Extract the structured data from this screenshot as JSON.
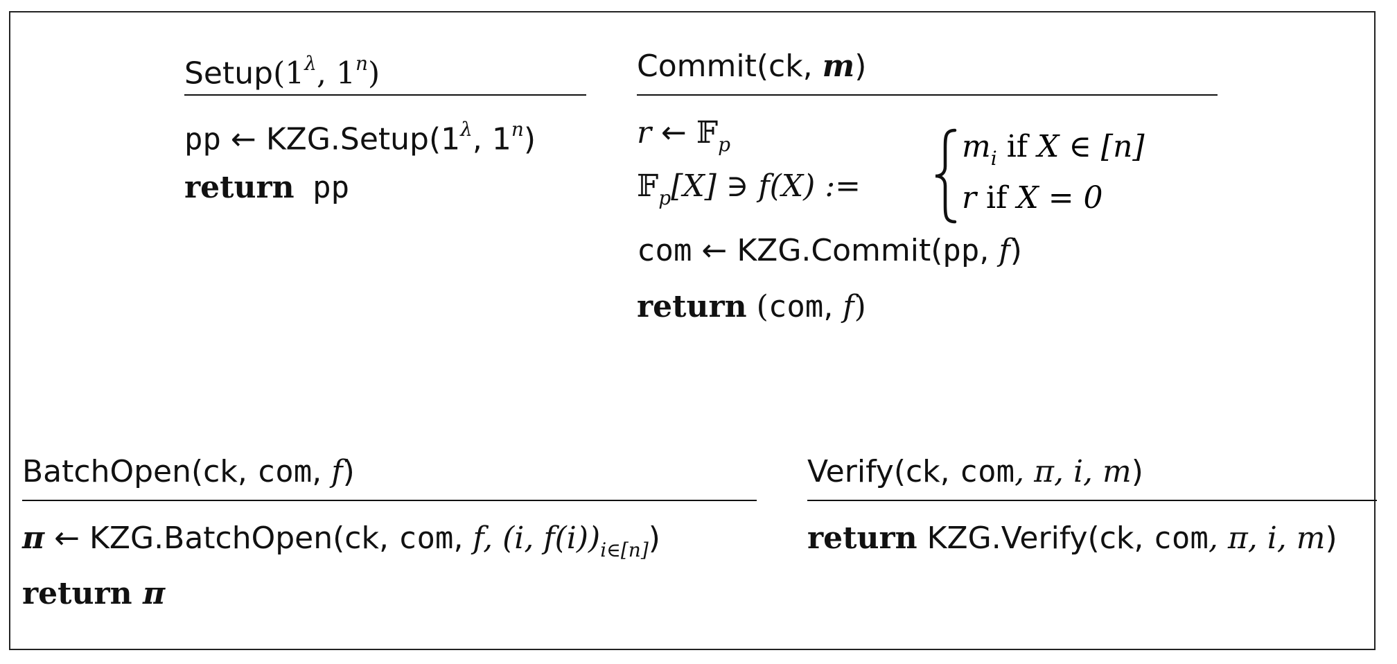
{
  "setup": {
    "header": {
      "name": "Setup",
      "args": "(1",
      "sup1": "λ",
      "mid": ", 1",
      "sup2": "n",
      "close": ")"
    },
    "line1": {
      "lhs": "pp",
      "arrow": " ← KZG.Setup(1",
      "sup1": "λ",
      "mid": ", 1",
      "sup2": "n",
      "close": ")"
    },
    "line2": {
      "kw": "return",
      "val": " pp"
    }
  },
  "commit": {
    "header": {
      "name": "Commit(ck, ",
      "arg": "m",
      "close": ")"
    },
    "line1": {
      "var": "r",
      "arrow": " ← ",
      "field": "𝔽",
      "sub": "p"
    },
    "line2": {
      "field": "𝔽",
      "sub": "p",
      "rest": "[X] ∋ f(X) := "
    },
    "case1": {
      "var": "m",
      "sub": "i",
      "cond": " if ",
      "rest": "X ∈ [n]"
    },
    "case2": {
      "var": "r",
      "cond": " if ",
      "rest": "X = 0"
    },
    "line3": {
      "lhs": "com",
      "arrow": " ← KZG.Commit(",
      "arg1": "pp",
      "sep": ", ",
      "arg2": "f",
      "close": ")"
    },
    "line4": {
      "kw": "return",
      "open": " (",
      "arg1": "com",
      "sep": ", ",
      "arg2": "f",
      "close": ")"
    }
  },
  "batchopen": {
    "header": {
      "name": "BatchOpen(ck, ",
      "arg1": "com",
      "sep": ", ",
      "arg2": "f",
      "close": ")"
    },
    "line1": {
      "lhs": "π",
      "arrow": " ← KZG.BatchOpen(ck, ",
      "arg1": "com",
      "sep": ", ",
      "arg2": "f",
      "tail": ", (i, f(i))",
      "sub": "i∈[n]",
      "close": ")"
    },
    "line2": {
      "kw": "return",
      "val": " π"
    }
  },
  "verify": {
    "header": {
      "name": "Verify(ck, ",
      "arg1": "com",
      "rest": ", π, i, m",
      "close": ")"
    },
    "line1": {
      "kw": "return",
      "call": " KZG.Verify(ck, ",
      "arg1": "com",
      "rest": ", π, i, m",
      "close": ")"
    }
  }
}
